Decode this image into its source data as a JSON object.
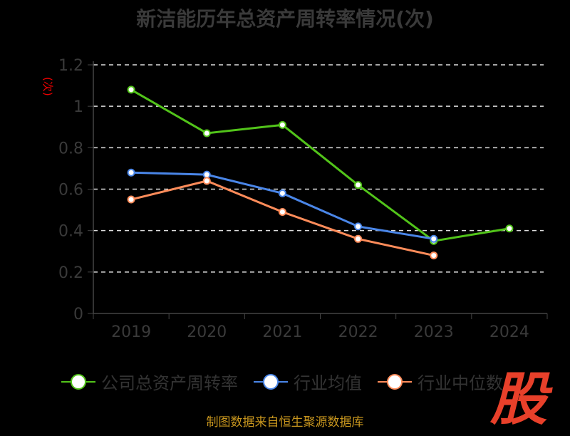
{
  "chart_data": {
    "type": "line",
    "title": "新洁能历年总资产周转率情况(次)",
    "ylabel": "(次)",
    "categories": [
      "2019",
      "2020",
      "2021",
      "2022",
      "2023",
      "2024"
    ],
    "yticks": [
      "0",
      "0.2",
      "0.4",
      "0.6",
      "0.8",
      "1",
      "1.2"
    ],
    "ylim": [
      0,
      1.2
    ],
    "grid": true,
    "legend_position": "bottom",
    "series": [
      {
        "name": "公司总资产周转率",
        "color": "#52c41a",
        "values": [
          1.08,
          0.87,
          0.91,
          0.62,
          0.35,
          0.41
        ]
      },
      {
        "name": "行业均值",
        "color": "#4a86e8",
        "values": [
          0.68,
          0.67,
          0.58,
          0.42,
          0.36,
          null
        ]
      },
      {
        "name": "行业中位数",
        "color": "#ff8c5a",
        "values": [
          0.55,
          0.64,
          0.49,
          0.36,
          0.28,
          null
        ]
      }
    ]
  },
  "source": "制图数据来自恒生聚源数据库",
  "logo_text": "股"
}
